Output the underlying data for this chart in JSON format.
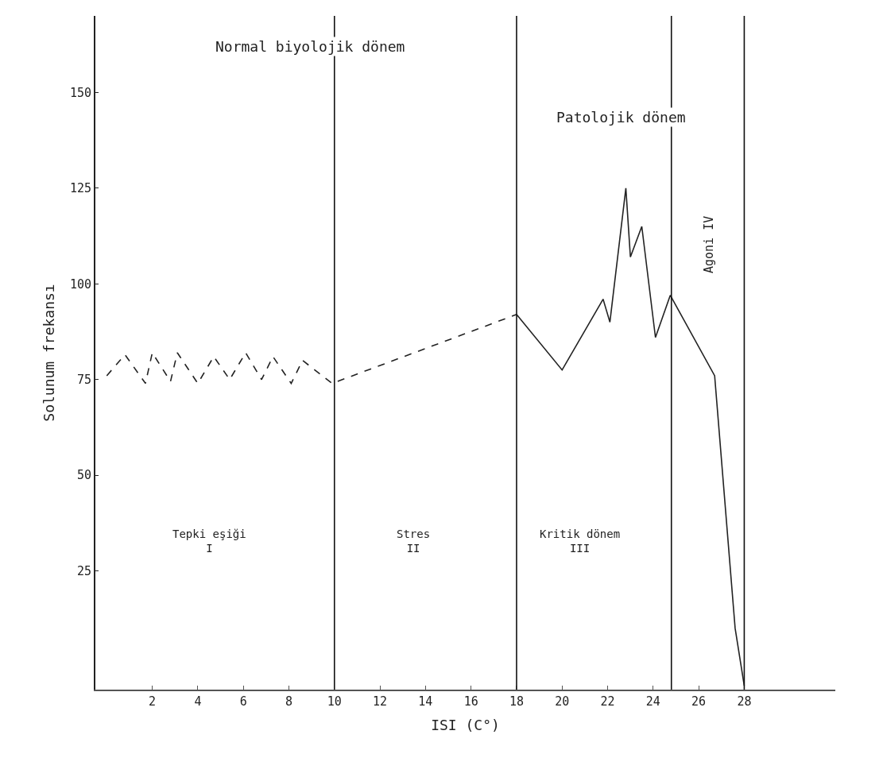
{
  "chart_data": {
    "type": "line",
    "xlabel": "ISI (C°)",
    "ylabel": "Solunum frekansı",
    "series": [
      {
        "color": "#222222",
        "line_style": "dashed",
        "x": [
          0,
          0.8,
          1.7,
          2,
          2.8,
          3.1,
          4,
          4.7,
          5.4,
          6.1,
          6.8,
          7.3,
          8.1,
          8.6,
          9.9,
          18
        ],
        "values": [
          76,
          81.5,
          74,
          82,
          74.5,
          82,
          74,
          81,
          75,
          82,
          75,
          81,
          74,
          80,
          74,
          92
        ]
      },
      {
        "color": "#222222",
        "line_style": "solid",
        "x": [
          18,
          20,
          21.8,
          22.1,
          22.8,
          23.0,
          23.5,
          24.1,
          24.75,
          26.7,
          27.6,
          28
        ],
        "values": [
          92,
          77.5,
          96,
          90,
          125,
          107,
          115,
          86,
          97,
          76,
          10,
          -5
        ]
      }
    ],
    "xlim": [
      -0.5,
      32
    ],
    "ylim": [
      -6,
      170
    ],
    "xticks": [
      2,
      4,
      6,
      8,
      10,
      12,
      14,
      16,
      18,
      20,
      22,
      24,
      26,
      28
    ],
    "yticks": [
      25,
      50,
      75,
      100,
      125,
      150
    ],
    "grid": false,
    "marker": "none",
    "ref_lines": [
      {
        "axis": "x",
        "value": 10
      },
      {
        "axis": "x",
        "value": 18
      },
      {
        "axis": "x",
        "value": 24.8
      },
      {
        "axis": "x",
        "value": 28
      }
    ],
    "annotations": [
      "Normal biyolojik dönem",
      "Patolojik dönem",
      "Tepki eşiği\nI",
      "Stres\nII",
      "Kritik dönem\nIII",
      "Agoni IV"
    ]
  }
}
